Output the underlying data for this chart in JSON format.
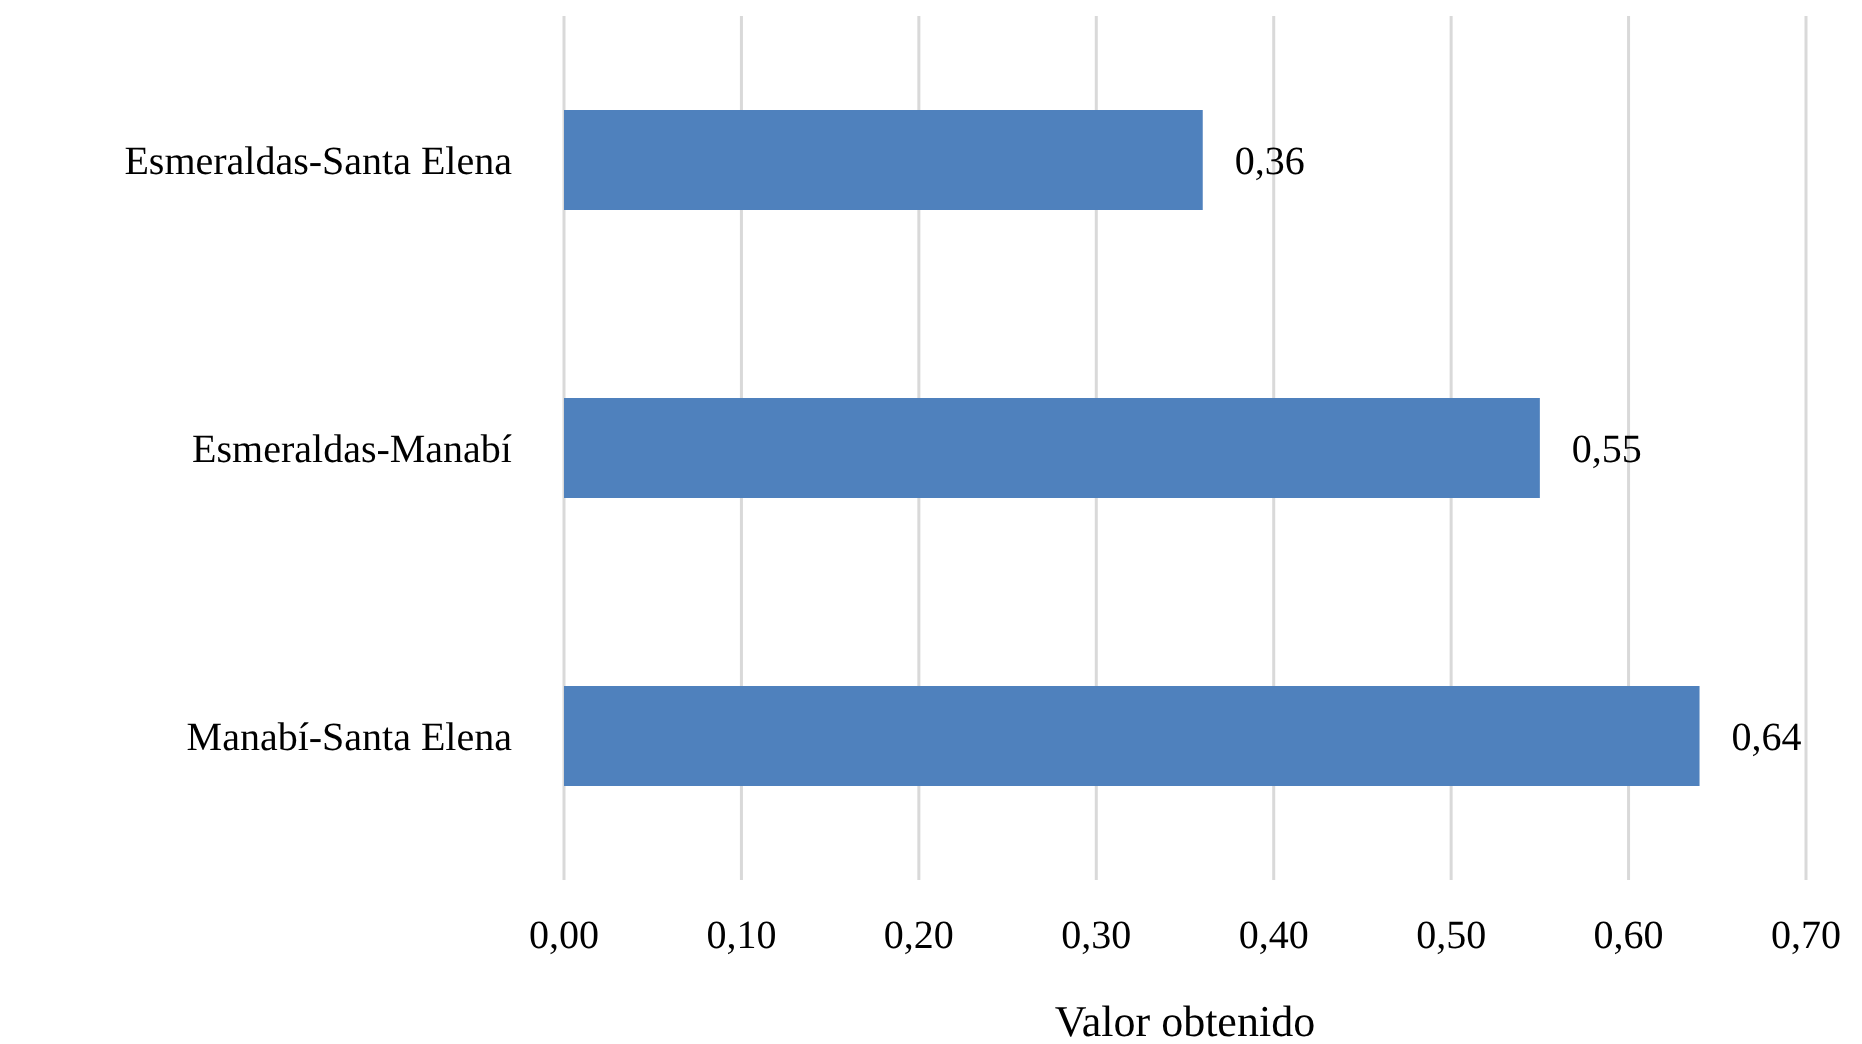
{
  "chart_data": {
    "type": "bar",
    "orientation": "horizontal",
    "xlabel": "Valor obtenido",
    "categories": [
      "Esmeraldas-Santa Elena",
      "Esmeraldas-Manabí",
      "Manabí-Santa Elena"
    ],
    "values": [
      0.36,
      0.55,
      0.64
    ],
    "value_labels": [
      "0,36",
      "0,55",
      "0,64"
    ],
    "color": "#4f81bd",
    "xlim": [
      0,
      0.7
    ],
    "xticks": [
      {
        "value": 0,
        "label": "0,00"
      },
      {
        "value": 0.1,
        "label": "0,10"
      },
      {
        "value": 0.2,
        "label": "0,20"
      },
      {
        "value": 0.3,
        "label": "0,30"
      },
      {
        "value": 0.4,
        "label": "0,40"
      },
      {
        "value": 0.5,
        "label": "0,50"
      },
      {
        "value": 0.6,
        "label": "0,60"
      },
      {
        "value": 0.7,
        "label": "0,70"
      }
    ],
    "grid": "x",
    "legend": false
  }
}
